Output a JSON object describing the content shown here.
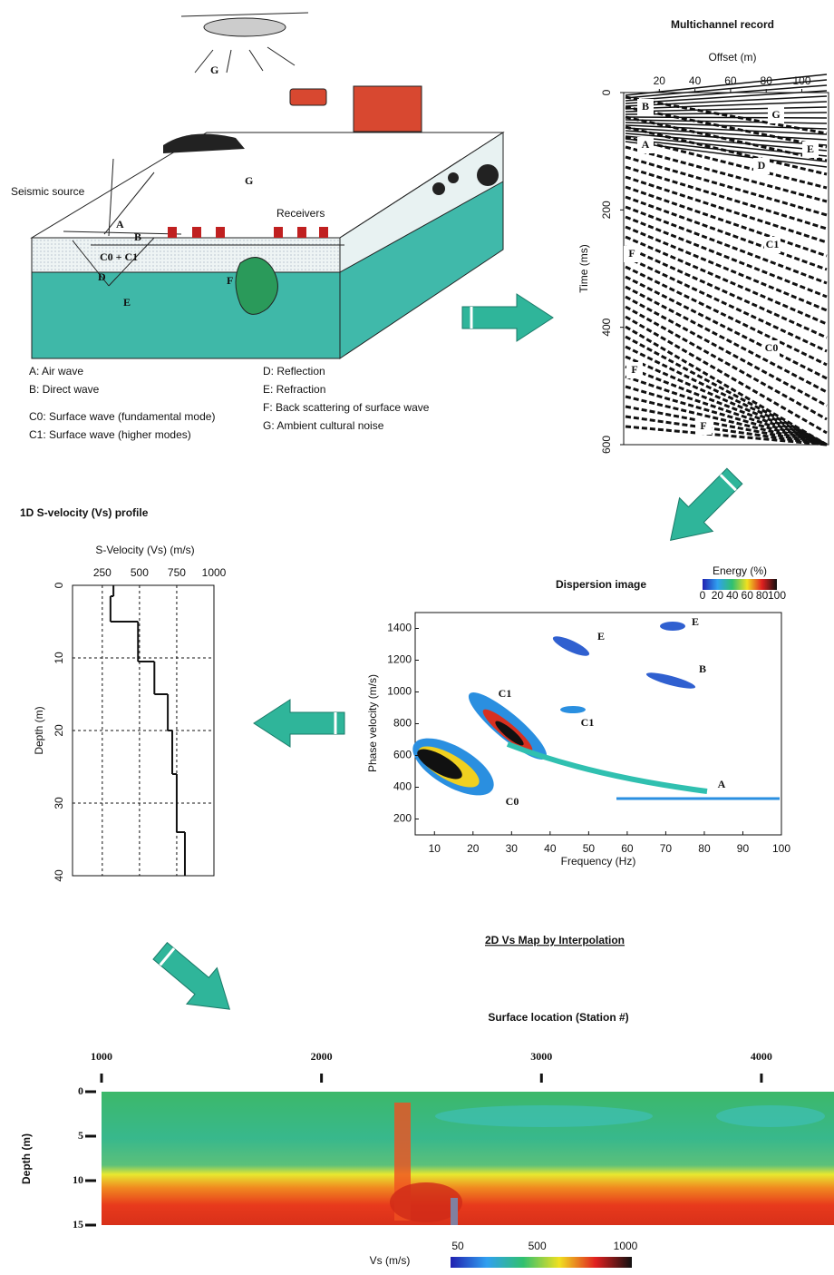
{
  "survey": {
    "source": "Seismic source",
    "receivers": "Receivers",
    "wave_labels": [
      "G",
      "A",
      "B",
      "C0 + C1",
      "D",
      "E",
      "F",
      "G"
    ],
    "legend": [
      "A: Air wave",
      "B: Direct wave",
      "C0: Surface wave (fundamental mode)",
      "C1: Surface wave (higher modes)",
      "D: Reflection",
      "E: Refraction",
      "F: Back scattering of surface wave",
      "G: Ambient cultural noise"
    ]
  },
  "record": {
    "title": "Multichannel record",
    "xlabel": "Offset (m)",
    "ylabel": "Time (ms)",
    "xlim": [
      0,
      115
    ],
    "xticks": [
      20,
      40,
      60,
      80,
      100
    ],
    "ylim": [
      0,
      600
    ],
    "yticks": [
      0,
      200,
      400,
      600
    ],
    "event_labels": [
      "B",
      "G",
      "A",
      "E",
      "D",
      "C1",
      "F",
      "C0",
      "F",
      "F"
    ]
  },
  "dispersion": {
    "title": "Dispersion image",
    "xlabel": "Frequency (Hz)",
    "ylabel": "Phase velocity (m/s)",
    "xlim": [
      5,
      100
    ],
    "xticks": [
      10,
      20,
      30,
      40,
      50,
      60,
      70,
      80,
      90,
      100
    ],
    "ylim": [
      100,
      1500
    ],
    "yticks": [
      200,
      400,
      600,
      800,
      1000,
      1200,
      1400
    ],
    "colorbar_title": "Energy (%)",
    "colorbar_ticks": [
      0,
      20,
      40,
      60,
      80,
      100
    ],
    "event_labels": [
      "E",
      "E",
      "B",
      "C1",
      "C1",
      "A",
      "C0"
    ]
  },
  "profile": {
    "title": "1D S-velocity (Vs) profile",
    "xlabel": "S-Velocity (Vs) (m/s)",
    "ylabel": "Depth (m)",
    "xlim": [
      50,
      1000
    ],
    "xticks": [
      250,
      500,
      750,
      1000
    ],
    "ylim": [
      0,
      40
    ],
    "yticks": [
      0,
      10,
      20,
      30,
      40
    ],
    "depth": [
      0,
      1.5,
      5,
      10.5,
      15,
      20,
      26,
      34,
      40
    ],
    "vs": [
      325,
      305,
      490,
      600,
      690,
      720,
      750,
      805
    ]
  },
  "map": {
    "title": "2D Vs Map by Interpolation",
    "xlabel": "Surface location (Station #)",
    "ylabel": "Depth (m)",
    "xlim": [
      1000,
      4330
    ],
    "xticks": [
      1000,
      2000,
      3000,
      4000
    ],
    "ylim": [
      0,
      15
    ],
    "yticks": [
      0,
      5,
      10,
      15
    ],
    "colorbar_label": "Vs (m/s)",
    "colorbar_ticks": [
      50,
      500,
      1000
    ]
  }
}
